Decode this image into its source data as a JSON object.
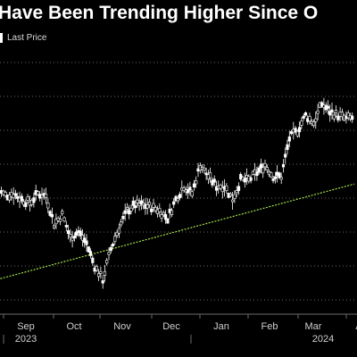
{
  "title": "Have Been Trending Higher Since O",
  "legend": {
    "label": "Last Price",
    "color": "#ffffff"
  },
  "colors": {
    "background": "#000000",
    "grid": "#6a6a6a",
    "price": "#ffffff",
    "trendline": "#a6e24a",
    "axis_text": "#d0d0d0"
  },
  "chart_data": {
    "type": "line",
    "title": "Have Been Trending Higher Since O",
    "legend": [
      "Last Price"
    ],
    "grid": true,
    "xlabel": "",
    "ylabel": "",
    "x_ticks": [
      "Sep",
      "Oct",
      "Nov",
      "Dec",
      "Jan",
      "Feb",
      "Mar",
      "A"
    ],
    "year_labels": [
      "2023",
      "2024"
    ],
    "ylim": [
      0,
      100
    ],
    "x": [
      "Aug 25",
      "Aug 30",
      "Sep 5",
      "Sep 10",
      "Sep 15",
      "Sep 20",
      "Sep 25",
      "Oct 1",
      "Oct 5",
      "Oct 10",
      "Oct 15",
      "Oct 20",
      "Oct 26",
      "Oct 31",
      "Nov 5",
      "Nov 10",
      "Nov 15",
      "Nov 20",
      "Nov 25",
      "Dec 1",
      "Dec 5",
      "Dec 10",
      "Dec 15",
      "Dec 20",
      "Dec 25",
      "Jan 1",
      "Jan 5",
      "Jan 10",
      "Jan 15",
      "Jan 20",
      "Jan 25",
      "Feb 1",
      "Feb 5",
      "Feb 10",
      "Feb 15",
      "Feb 20",
      "Feb 25",
      "Mar 1",
      "Mar 5",
      "Mar 10",
      "Mar 15",
      "Mar 20",
      "Mar 25",
      "Apr 1",
      "Apr 5"
    ],
    "series": [
      {
        "name": "Last Price",
        "values": [
          53,
          50,
          51,
          48,
          46,
          51,
          50,
          35,
          40,
          28,
          31,
          25,
          13,
          6,
          22,
          33,
          42,
          45,
          45,
          44,
          42,
          38,
          48,
          55,
          51,
          66,
          60,
          55,
          55,
          48,
          58,
          58,
          62,
          66,
          60,
          60,
          80,
          84,
          92,
          88,
          98,
          94,
          92,
          90,
          91
        ]
      },
      {
        "name": "",
        "values": [
          6,
          null,
          null,
          null,
          null,
          null,
          null,
          null,
          null,
          null,
          null,
          null,
          null,
          null,
          null,
          null,
          null,
          null,
          null,
          null,
          null,
          null,
          null,
          null,
          null,
          null,
          null,
          null,
          null,
          null,
          null,
          null,
          null,
          null,
          null,
          null,
          null,
          null,
          null,
          null,
          null,
          null,
          null,
          null,
          56
        ]
      }
    ]
  }
}
